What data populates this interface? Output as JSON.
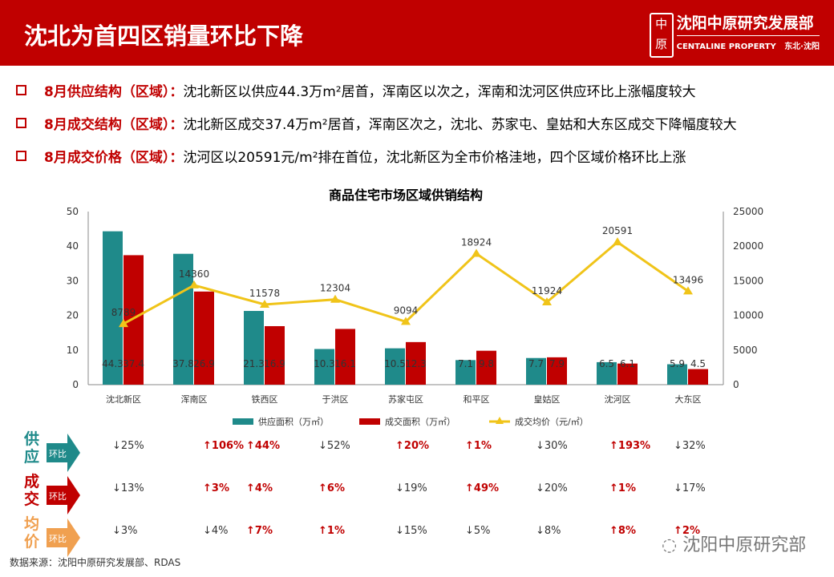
{
  "header": {
    "title": "沈北为首四区销量环比下降",
    "logo_cn": "沈阳中原研究发展部",
    "logo_en": "CENTALINE PROPERTY",
    "logo_region": "东北·沈阳",
    "logo_mark": "中原"
  },
  "bullets": [
    {
      "label": "8月供应结构（区域）：",
      "text": "沈北新区以供应44.3万m²居首，浑南区以次之，浑南和沈河区供应环比上涨幅度较大"
    },
    {
      "label": "8月成交结构（区域）：",
      "text": "沈北新区成交37.4万m²居首，浑南区次之，沈北、苏家屯、皇姑和大东区成交下降幅度较大"
    },
    {
      "label": "8月成交价格（区域）：",
      "text": "沈河区以20591元/m²排在首位，沈北新区为全市价格洼地，四个区域价格环比上涨"
    }
  ],
  "chart_data": {
    "type": "bar+line",
    "title": "商品住宅市场区域供销结构",
    "categories": [
      "沈北新区",
      "浑南区",
      "铁西区",
      "于洪区",
      "苏家屯区",
      "和平区",
      "皇姑区",
      "沈河区",
      "大东区"
    ],
    "series": [
      {
        "name": "供应面积（万㎡）",
        "type": "bar",
        "axis": "left",
        "color": "#1f8a8a",
        "values": [
          44.3,
          37.8,
          21.3,
          10.3,
          10.5,
          7.1,
          7.7,
          6.5,
          5.9
        ]
      },
      {
        "name": "成交面积（万㎡）",
        "type": "bar",
        "axis": "left",
        "color": "#c00000",
        "values": [
          37.4,
          26.9,
          16.9,
          16.1,
          12.3,
          9.8,
          7.9,
          6.1,
          4.5
        ]
      },
      {
        "name": "成交均价（元/㎡）",
        "type": "line",
        "axis": "right",
        "color": "#f0c419",
        "values": [
          8789,
          14360,
          11578,
          12304,
          9094,
          18924,
          11924,
          20591,
          13496
        ]
      }
    ],
    "ylim_left": [
      0,
      50
    ],
    "yticks_left": [
      "0",
      "10",
      "20",
      "30",
      "40",
      "50"
    ],
    "ylim_right": [
      0,
      25000
    ],
    "yticks_right": [
      "0",
      "5000",
      "10000",
      "15000",
      "20000",
      "25000"
    ],
    "legend": "bottom",
    "grid": false
  },
  "mom": {
    "badge": "环比",
    "rows": [
      {
        "label": "供应",
        "color": "#1f8a8a",
        "values": [
          "↓25%",
          "↑106%",
          "↑44%",
          "↓52%",
          "↑20%",
          "↑1%",
          "↓30%",
          "↑193%",
          "↓32%"
        ]
      },
      {
        "label": "成交",
        "color": "#c00000",
        "values": [
          "↓13%",
          "↑3%",
          "↑4%",
          "↑6%",
          "↓19%",
          "↑49%",
          "↓20%",
          "↑1%",
          "↓17%"
        ]
      },
      {
        "label": "均价",
        "color": "#f0a050",
        "values": [
          "↓3%",
          "↓4%",
          "↑7%",
          "↑1%",
          "↓15%",
          "↓5%",
          "↓8%",
          "↑8%",
          "↑2%"
        ]
      }
    ]
  },
  "source": "数据来源：沈阳中原研究发展部、RDAS",
  "watermark": "沈阳中原研究部"
}
